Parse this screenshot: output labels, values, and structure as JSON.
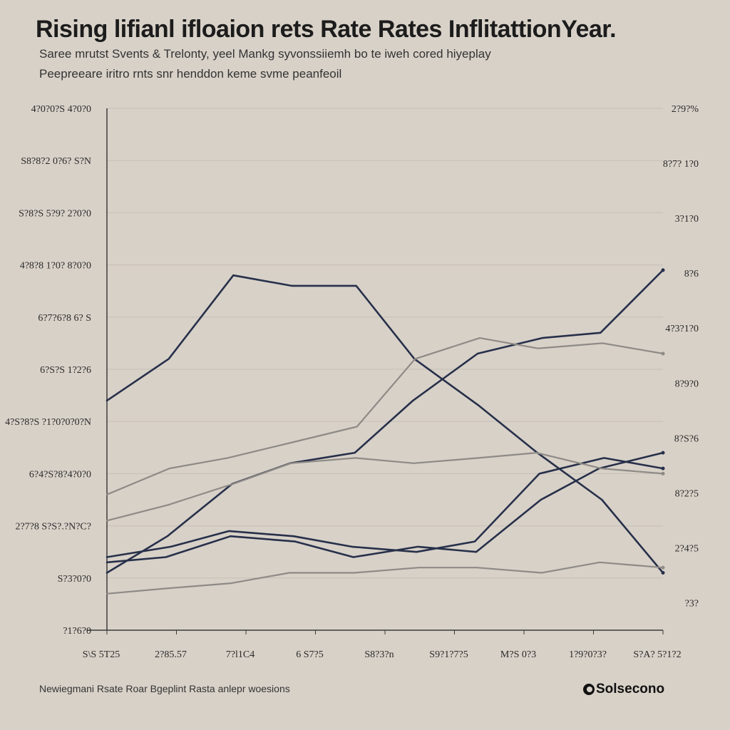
{
  "title": "Rising lifianl ifloaion rets Rate Rates InflitattionYear.",
  "subtitle_1": "Saree mrutst Svents & Trelonty, yeel Mankg syvonssiiemh bo te iweh cored hiyeplay",
  "subtitle_2": "Peepreeare iritro rnts snr henddon keme svme peanfeoil",
  "footer_note": "Newiegmani Rsate Roar Bgeplint Rasta anlepr woesions",
  "brand": "Solsecono",
  "colors": {
    "background": "#d8d1c8",
    "navy": "#27304a",
    "gray": "#8e8a86"
  },
  "chart_data": {
    "type": "line",
    "title": "Rising lifianl ifloaion rets Rate Rates InflitattionYear.",
    "xlabel": "",
    "ylabel": "",
    "x": [
      0,
      1,
      2,
      3,
      4,
      5,
      6,
      7,
      8,
      9
    ],
    "x_ticks": [
      "S\\S 5T25",
      "2?85.57",
      "7?l1C4",
      "6 S7?5",
      "S8?3?n",
      "S9?1?7?5",
      "M?S 0?3",
      "1?9?0?3?",
      "S?A? 5?1?2"
    ],
    "ylim": [
      0,
      10
    ],
    "y_ticks_left": [
      "4?0?0?S 4?0?0",
      "S8?8?2 0?6? S?N",
      "S?8?S 5?9? 2?0?0",
      "4?8?8 1?0? 8?0?0",
      "6?7?6?8 6? S",
      "6?S?S 1?2?6",
      "4?S?8?S ?1?0?0?0?N",
      "6?4?S?8?4?0?0",
      "2?7?8 S?S?.?N?C?",
      "S?3?0?0",
      "?1?6?0"
    ],
    "y_ticks_right": [
      "2?9?%",
      "8?7? 1?0",
      "3?1?0",
      "8?6",
      "4?3?1?0",
      "8?9?0",
      "8?S?6",
      "8?2?5",
      "2?4?5",
      "?3?"
    ],
    "grid": true,
    "legend": "none",
    "series": [
      {
        "style": "navy",
        "values": [
          4.4,
          5.2,
          6.8,
          6.6,
          6.6,
          5.2,
          4.3,
          3.4,
          2.5,
          1.1
        ]
      },
      {
        "style": "navy",
        "values": [
          1.1,
          1.8,
          2.8,
          3.2,
          3.4,
          4.4,
          5.3,
          5.6,
          5.7,
          6.9
        ]
      },
      {
        "style": "navy",
        "values": [
          1.3,
          1.4,
          1.8,
          1.7,
          1.4,
          1.6,
          1.5,
          2.5,
          3.1,
          3.4
        ]
      },
      {
        "style": "navy",
        "values": [
          1.4,
          1.6,
          1.9,
          1.8,
          1.6,
          1.5,
          1.7,
          3.0,
          3.3,
          3.1
        ]
      },
      {
        "style": "gray",
        "values": [
          2.6,
          3.1,
          3.3,
          3.6,
          3.9,
          5.2,
          5.6,
          5.4,
          5.5,
          5.3
        ]
      },
      {
        "style": "gray",
        "values": [
          2.1,
          2.4,
          2.8,
          3.2,
          3.3,
          3.2,
          3.3,
          3.4,
          3.1,
          3.0
        ]
      },
      {
        "style": "gray",
        "values": [
          0.7,
          0.8,
          0.9,
          1.1,
          1.1,
          1.2,
          1.2,
          1.1,
          1.3,
          1.2
        ]
      }
    ]
  }
}
